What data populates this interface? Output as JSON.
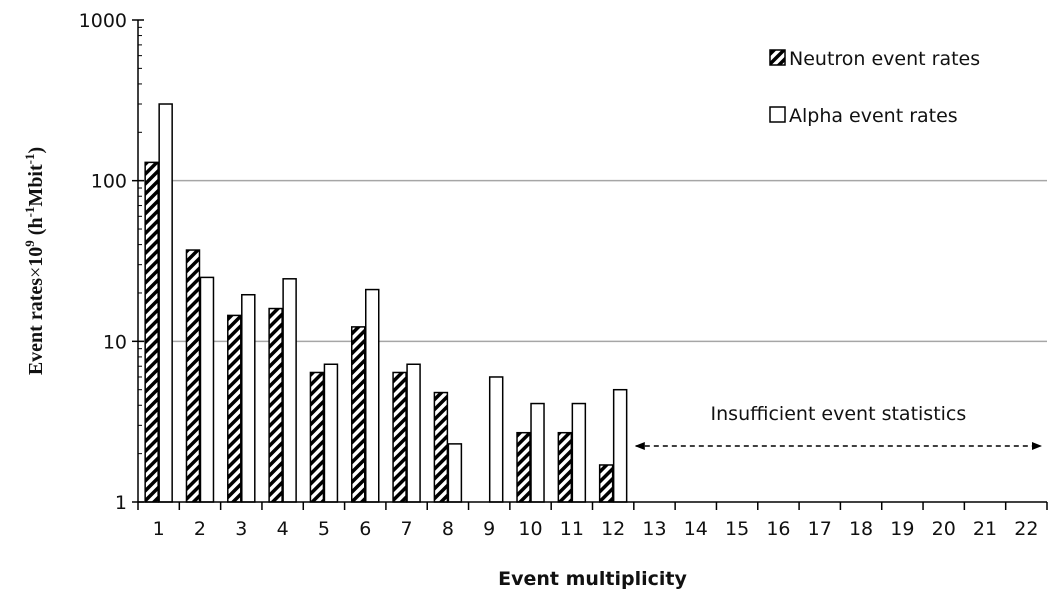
{
  "chart_data": {
    "type": "bar",
    "xlabel": "Event multiplicity",
    "ylabel_parts": [
      "Event rates",
      "×",
      "10",
      "9",
      " (h",
      "-1",
      "Mbit",
      "-1",
      ")"
    ],
    "y_scale": "log",
    "ylim": [
      1,
      1000
    ],
    "y_ticks": [
      1,
      10,
      100,
      1000
    ],
    "y_tick_labels": [
      "1",
      "10",
      "100",
      "1000"
    ],
    "grid": "horizontal major",
    "legend_position": "top-right",
    "categories": [
      "1",
      "2",
      "3",
      "4",
      "5",
      "6",
      "7",
      "8",
      "9",
      "10",
      "11",
      "12",
      "13",
      "14",
      "15",
      "16",
      "17",
      "18",
      "19",
      "20",
      "21",
      "22"
    ],
    "series": [
      {
        "name": "Neutron event rates",
        "fill": "hatched",
        "values": [
          130,
          37,
          14.5,
          16,
          6.4,
          12.3,
          6.4,
          4.8,
          null,
          2.7,
          2.7,
          1.7,
          null,
          null,
          null,
          null,
          null,
          null,
          null,
          null,
          null,
          null
        ]
      },
      {
        "name": "Alpha event rates",
        "fill": "white",
        "values": [
          300,
          25,
          19.5,
          24.5,
          7.2,
          21,
          7.2,
          2.3,
          6,
          4.1,
          4.1,
          5,
          null,
          null,
          null,
          null,
          null,
          null,
          null,
          null,
          null,
          null
        ]
      }
    ],
    "annotation": {
      "text": "Insufficient event statistics",
      "from_category": "12",
      "to_category": "22"
    },
    "colors": {
      "bar_stroke": "#000000",
      "grid": "#a6a6a6",
      "bar_fill_alpha": "#ffffff"
    }
  }
}
